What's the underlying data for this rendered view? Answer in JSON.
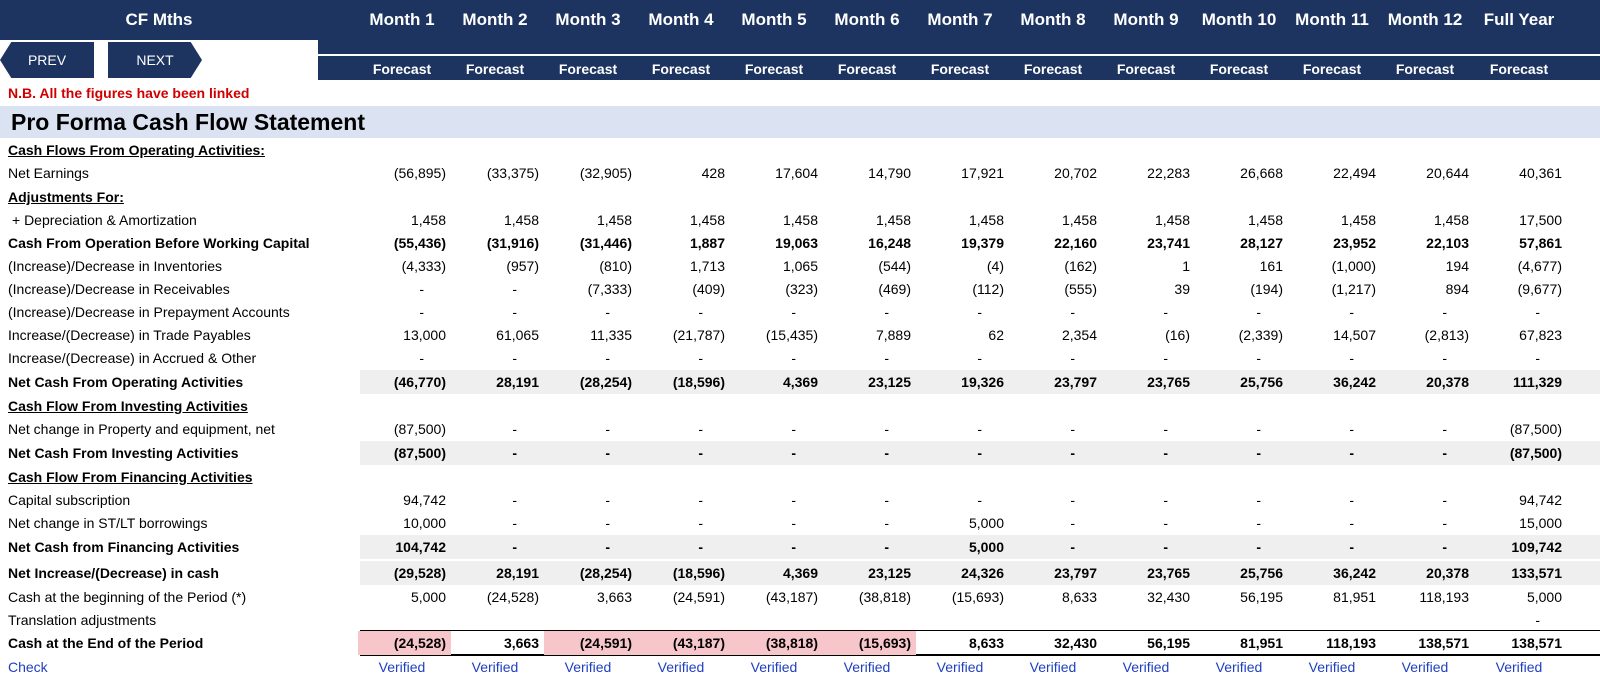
{
  "header": {
    "title": "CF Mths",
    "months": [
      "Month 1",
      "Month 2",
      "Month 3",
      "Month 4",
      "Month 5",
      "Month 6",
      "Month 7",
      "Month 8",
      "Month 9",
      "Month 10",
      "Month 11",
      "Month 12",
      "Full Year"
    ],
    "forecast_label": "Forecast"
  },
  "nav": {
    "prev": "PREV",
    "next": "NEXT"
  },
  "note": "N.B. All the figures have been linked",
  "statement_title": "Pro Forma Cash Flow Statement",
  "rows": [
    {
      "label": "Cash Flows From Operating Activities:",
      "type": "section",
      "values": []
    },
    {
      "label": "Net Earnings",
      "type": "normal",
      "values": [
        "(56,895)",
        "(33,375)",
        "(32,905)",
        "428",
        "17,604",
        "14,790",
        "17,921",
        "20,702",
        "22,283",
        "26,668",
        "22,494",
        "20,644",
        "40,361"
      ]
    },
    {
      "label": "Adjustments For:",
      "type": "section",
      "values": []
    },
    {
      "label": "+ Depreciation & Amortization",
      "type": "normal",
      "values": [
        "1,458",
        "1,458",
        "1,458",
        "1,458",
        "1,458",
        "1,458",
        "1,458",
        "1,458",
        "1,458",
        "1,458",
        "1,458",
        "1,458",
        "17,500"
      ]
    },
    {
      "label": "Cash From Operation Before Working Capital",
      "type": "bold",
      "values": [
        "(55,436)",
        "(31,916)",
        "(31,446)",
        "1,887",
        "19,063",
        "16,248",
        "19,379",
        "22,160",
        "23,741",
        "28,127",
        "23,952",
        "22,103",
        "57,861"
      ]
    },
    {
      "label": "(Increase)/Decrease in Inventories",
      "type": "normal",
      "values": [
        "(4,333)",
        "(957)",
        "(810)",
        "1,713",
        "1,065",
        "(544)",
        "(4)",
        "(162)",
        "1",
        "161",
        "(1,000)",
        "194",
        "(4,677)"
      ]
    },
    {
      "label": "(Increase)/Decrease in Receivables",
      "type": "normal",
      "values": [
        "-",
        "-",
        "(7,333)",
        "(409)",
        "(323)",
        "(469)",
        "(112)",
        "(555)",
        "39",
        "(194)",
        "(1,217)",
        "894",
        "(9,677)"
      ]
    },
    {
      "label": "(Increase)/Decrease in Prepayment Accounts",
      "type": "normal",
      "values": [
        "-",
        "-",
        "-",
        "-",
        "-",
        "-",
        "-",
        "-",
        "-",
        "-",
        "-",
        "-",
        "-"
      ]
    },
    {
      "label": "Increase/(Decrease) in Trade Payables",
      "type": "normal",
      "values": [
        "13,000",
        "61,065",
        "11,335",
        "(21,787)",
        "(15,435)",
        "7,889",
        "62",
        "2,354",
        "(16)",
        "(2,339)",
        "14,507",
        "(2,813)",
        "67,823"
      ]
    },
    {
      "label": "Increase/(Decrease) in Accrued & Other",
      "type": "normal",
      "values": [
        "-",
        "-",
        "-",
        "-",
        "-",
        "-",
        "-",
        "-",
        "-",
        "-",
        "-",
        "-",
        "-"
      ]
    },
    {
      "label": "Net Cash From Operating Activities",
      "type": "total",
      "values": [
        "(46,770)",
        "28,191",
        "(28,254)",
        "(18,596)",
        "4,369",
        "23,125",
        "19,326",
        "23,797",
        "23,765",
        "25,756",
        "36,242",
        "20,378",
        "111,329"
      ]
    },
    {
      "label": "Cash Flow From Investing Activities",
      "type": "section",
      "values": []
    },
    {
      "label": "Net change in Property and equipment, net",
      "type": "normal",
      "values": [
        "(87,500)",
        "-",
        "-",
        "-",
        "-",
        "-",
        "-",
        "-",
        "-",
        "-",
        "-",
        "-",
        "(87,500)"
      ]
    },
    {
      "label": "Net Cash From Investing Activities",
      "type": "total",
      "values": [
        "(87,500)",
        "-",
        "-",
        "-",
        "-",
        "-",
        "-",
        "-",
        "-",
        "-",
        "-",
        "-",
        "(87,500)"
      ]
    },
    {
      "label": "Cash Flow From Financing Activities",
      "type": "section",
      "values": []
    },
    {
      "label": "Capital subscription",
      "type": "normal",
      "values": [
        "94,742",
        "-",
        "-",
        "-",
        "-",
        "-",
        "-",
        "-",
        "-",
        "-",
        "-",
        "-",
        "94,742"
      ]
    },
    {
      "label": "Net change in ST/LT borrowings",
      "type": "normal",
      "values": [
        "10,000",
        "-",
        "-",
        "-",
        "-",
        "-",
        "5,000",
        "-",
        "-",
        "-",
        "-",
        "-",
        "15,000"
      ]
    },
    {
      "label": "Net Cash from Financing Activities",
      "type": "total",
      "values": [
        "104,742",
        "-",
        "-",
        "-",
        "-",
        "-",
        "5,000",
        "-",
        "-",
        "-",
        "-",
        "-",
        "109,742"
      ]
    },
    {
      "label": "Net Increase/(Decrease) in cash",
      "type": "total",
      "values": [
        "(29,528)",
        "28,191",
        "(28,254)",
        "(18,596)",
        "4,369",
        "23,125",
        "24,326",
        "23,797",
        "23,765",
        "25,756",
        "36,242",
        "20,378",
        "133,571"
      ]
    },
    {
      "label": "Cash at the beginning of the Period (*)",
      "type": "normal",
      "values": [
        "5,000",
        "(24,528)",
        "3,663",
        "(24,591)",
        "(43,187)",
        "(38,818)",
        "(15,693)",
        "8,633",
        "32,430",
        "56,195",
        "81,951",
        "118,193",
        "5,000"
      ]
    },
    {
      "label": "Translation adjustments",
      "type": "normal",
      "values": [
        "",
        "",
        "",
        "",
        "",
        "",
        "",
        "",
        "",
        "",
        "",
        "",
        "-"
      ]
    },
    {
      "label": "Cash at the End of the Period",
      "type": "end",
      "values": [
        "(24,528)",
        "3,663",
        "(24,591)",
        "(43,187)",
        "(38,818)",
        "(15,693)",
        "8,633",
        "32,430",
        "56,195",
        "81,951",
        "118,193",
        "138,571",
        "138,571"
      ],
      "negative_flags": [
        true,
        false,
        true,
        true,
        true,
        true,
        false,
        false,
        false,
        false,
        false,
        false,
        false
      ]
    },
    {
      "label": "Check",
      "type": "check",
      "values": [
        "Verified",
        "Verified",
        "Verified",
        "Verified",
        "Verified",
        "Verified",
        "Verified",
        "Verified",
        "Verified",
        "Verified",
        "Verified",
        "Verified",
        "Verified"
      ]
    }
  ],
  "colors": {
    "header_bg": "#1d3461",
    "note": "#d00000",
    "title_band": "#dbe3f2",
    "negative_highlight": "#f7c6cb",
    "check_text": "#1f3fbf",
    "total_shade": "#efefef"
  }
}
